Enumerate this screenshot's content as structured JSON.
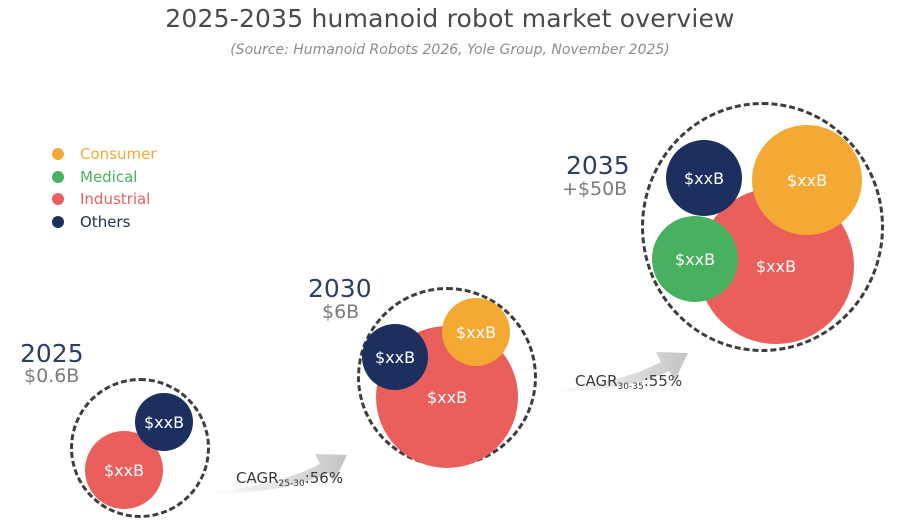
{
  "title": "2025-2035 humanoid robot market overview",
  "subtitle": "(Source: Humanoid Robots 2026, Yole Group, November 2025)",
  "colors": {
    "consumer": "#f4a934",
    "medical": "#47b15f",
    "industrial": "#ea5f5c",
    "others": "#1d2f5e"
  },
  "legend": [
    {
      "label": "Consumer",
      "color": "#f4a934"
    },
    {
      "label": "Medical",
      "color": "#47b15f"
    },
    {
      "label": "Industrial",
      "color": "#ea5f5c"
    },
    {
      "label": "Others",
      "color": "#1d2f5e"
    }
  ],
  "years": [
    {
      "year": "2025",
      "value": "$0.6B",
      "bubbles": {
        "industrial": "$xxB",
        "others": "$xxB"
      }
    },
    {
      "year": "2030",
      "value": "$6B",
      "bubbles": {
        "industrial": "$xxB",
        "others": "$xxB",
        "consumer": "$xxB"
      }
    },
    {
      "year": "2035",
      "value": "+$50B",
      "bubbles": {
        "industrial": "$xxB",
        "others": "$xxB",
        "consumer": "$xxB",
        "medical": "$xxB"
      }
    }
  ],
  "transitions": [
    {
      "label": "CAGR",
      "sub": "25-30",
      "rate": ":56%"
    },
    {
      "label": "CAGR",
      "sub": "30-35",
      "rate": ":55%"
    }
  ]
}
